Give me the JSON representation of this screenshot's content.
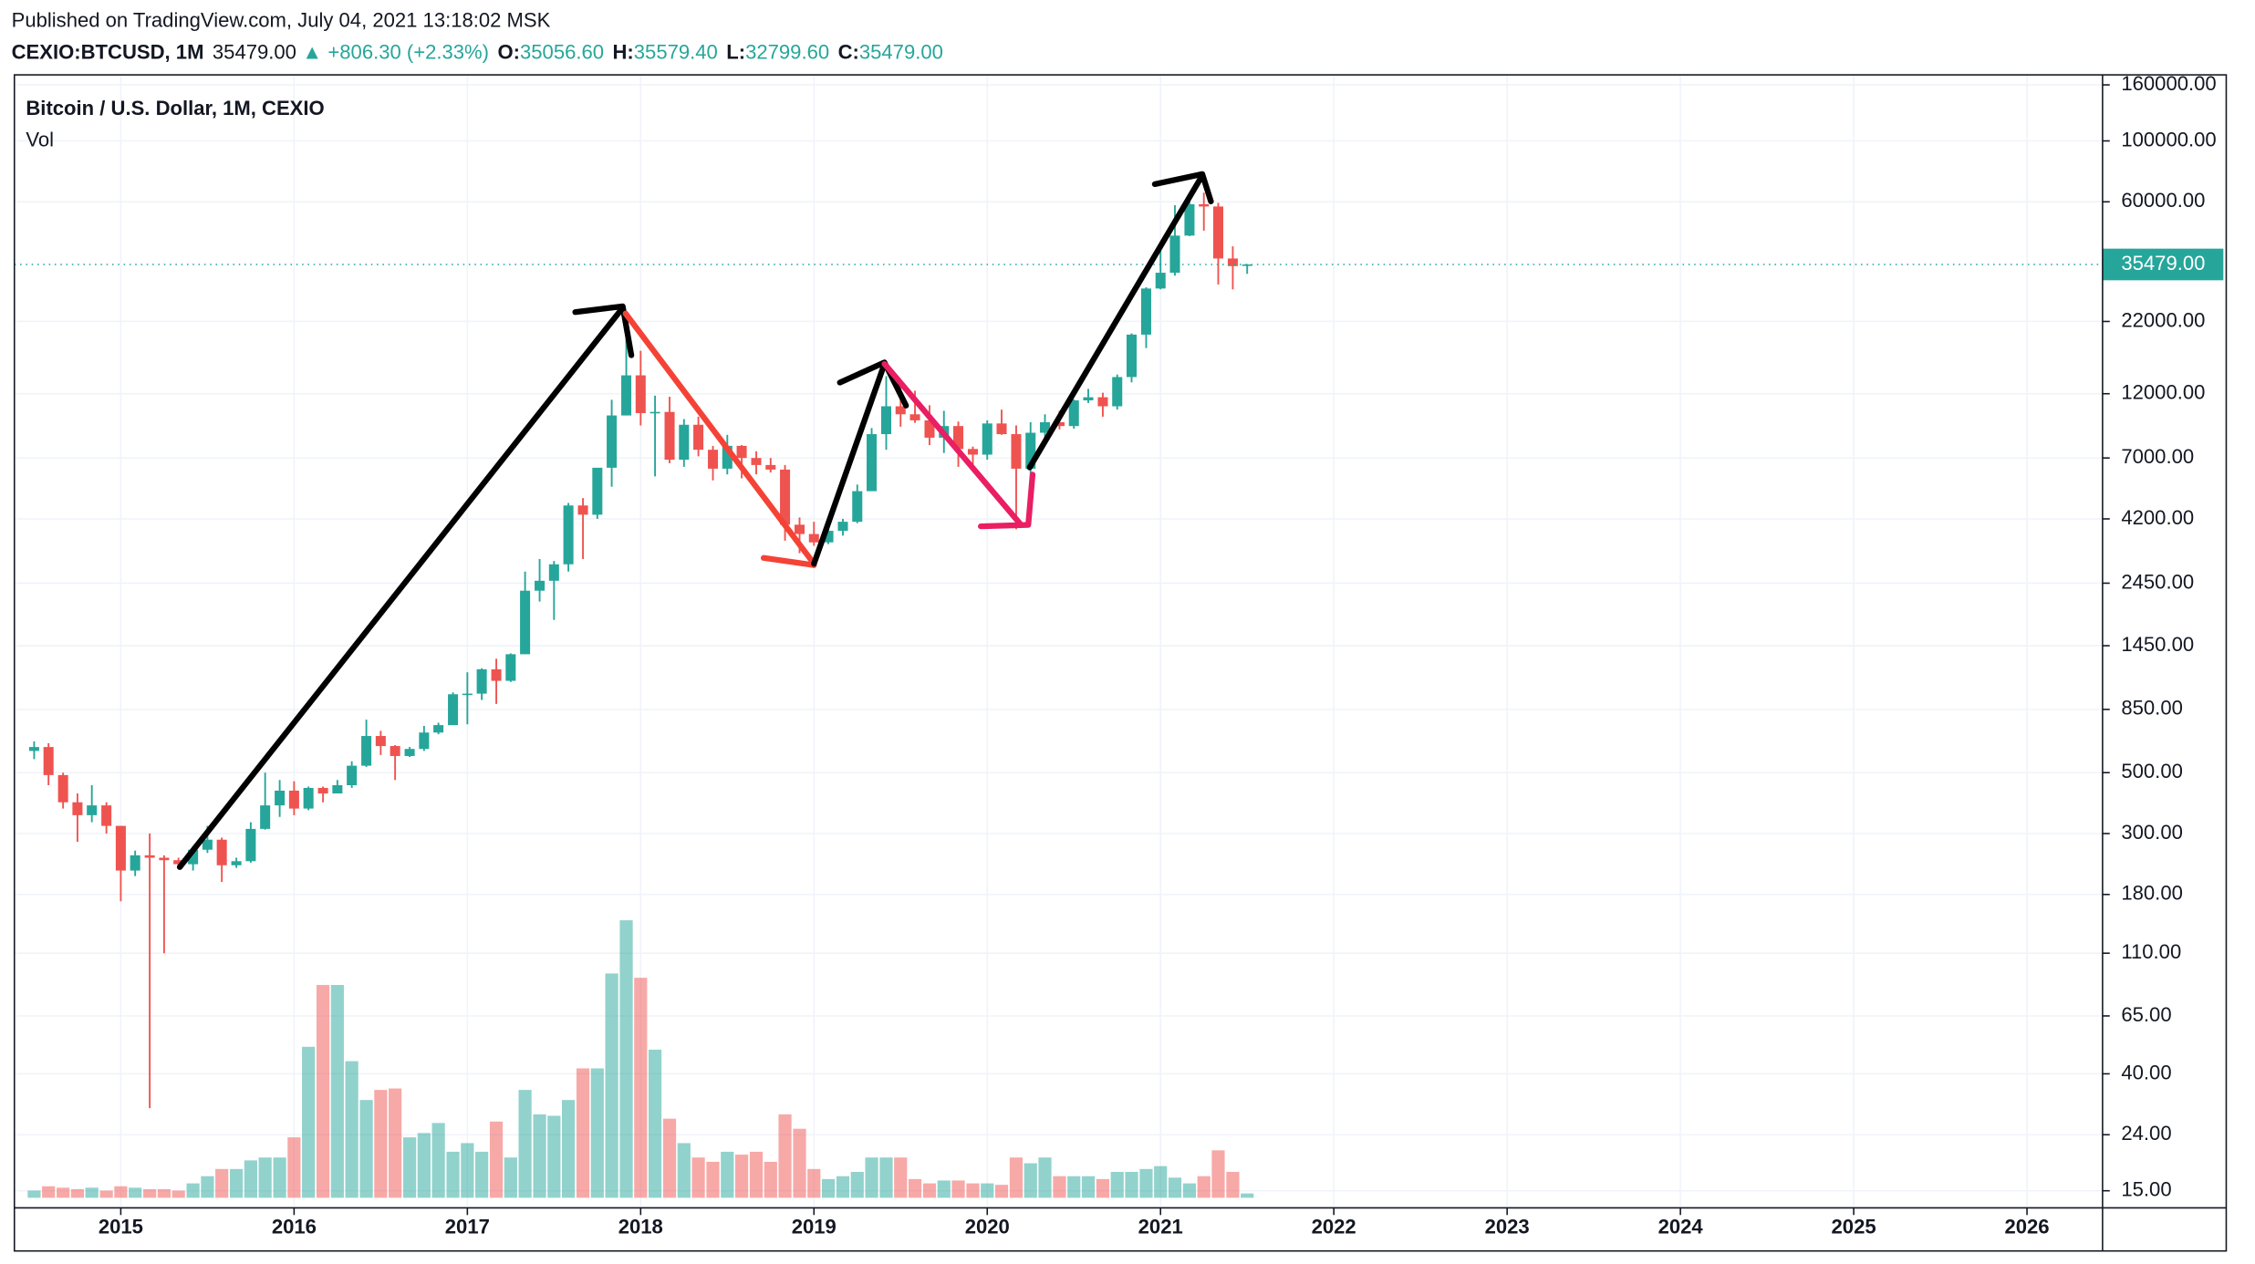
{
  "header": {
    "published": "Published on TradingView.com, July 04, 2021 13:18:02 MSK",
    "symbol": "CEXIO:BTCUSD, 1M",
    "last": "35479.00",
    "arrow": "▲",
    "change": "+806.30 (+2.33%)",
    "ohlc": [
      {
        "key": "O:",
        "value": "35056.60"
      },
      {
        "key": "H:",
        "value": "35579.40"
      },
      {
        "key": "L:",
        "value": "32799.60"
      },
      {
        "key": "C:",
        "value": "35479.00"
      }
    ]
  },
  "chart_data": {
    "type": "candlestick",
    "title": "Bitcoin / U.S. Dollar, 1M, CEXIO",
    "volume_label": "Vol",
    "log_scale": true,
    "grid": true,
    "up_color": "#26a69a",
    "down_color": "#ef5350",
    "ylim": [
      13,
      174000
    ],
    "yticks": [
      {
        "value": 160000,
        "label": "160000.00"
      },
      {
        "value": 100000,
        "label": "100000.00"
      },
      {
        "value": 60000,
        "label": "60000.00"
      },
      {
        "value": 22000,
        "label": "22000.00"
      },
      {
        "value": 12000,
        "label": "12000.00"
      },
      {
        "value": 7000,
        "label": "7000.00"
      },
      {
        "value": 4200,
        "label": "4200.00"
      },
      {
        "value": 2450,
        "label": "2450.00"
      },
      {
        "value": 1450,
        "label": "1450.00"
      },
      {
        "value": 850,
        "label": "850.00"
      },
      {
        "value": 500,
        "label": "500.00"
      },
      {
        "value": 300,
        "label": "300.00"
      },
      {
        "value": 180,
        "label": "180.00"
      },
      {
        "value": 110,
        "label": "110.00"
      },
      {
        "value": 65,
        "label": "65.00"
      },
      {
        "value": 40,
        "label": "40.00"
      },
      {
        "value": 24,
        "label": "24.00"
      },
      {
        "value": 15,
        "label": "15.00"
      }
    ],
    "xlim": [
      2014.386,
      2026.436
    ],
    "xticks": [
      2015,
      2016,
      2017,
      2018,
      2019,
      2020,
      2021,
      2022,
      2023,
      2024,
      2025,
      2026
    ],
    "volume_lim": [
      0,
      200
    ],
    "x": [
      2014.5,
      2014.583,
      2014.667,
      2014.75,
      2014.833,
      2014.917,
      2015.0,
      2015.083,
      2015.167,
      2015.25,
      2015.333,
      2015.417,
      2015.5,
      2015.583,
      2015.667,
      2015.75,
      2015.833,
      2015.917,
      2016.0,
      2016.083,
      2016.167,
      2016.25,
      2016.333,
      2016.417,
      2016.5,
      2016.583,
      2016.667,
      2016.75,
      2016.833,
      2016.917,
      2017.0,
      2017.083,
      2017.167,
      2017.25,
      2017.333,
      2017.417,
      2017.5,
      2017.583,
      2017.667,
      2017.75,
      2017.833,
      2017.917,
      2018.0,
      2018.083,
      2018.167,
      2018.25,
      2018.333,
      2018.417,
      2018.5,
      2018.583,
      2018.667,
      2018.75,
      2018.833,
      2018.917,
      2019.0,
      2019.083,
      2019.167,
      2019.25,
      2019.333,
      2019.417,
      2019.5,
      2019.583,
      2019.667,
      2019.75,
      2019.833,
      2019.917,
      2020.0,
      2020.083,
      2020.167,
      2020.25,
      2020.333,
      2020.417,
      2020.5,
      2020.583,
      2020.667,
      2020.75,
      2020.833,
      2020.917,
      2021.0,
      2021.083,
      2021.167,
      2021.25,
      2021.333,
      2021.417,
      2021.5
    ],
    "open": [
      600,
      620,
      490,
      390,
      350,
      380,
      320,
      220,
      250,
      245,
      240,
      232,
      262,
      285,
      230,
      238,
      312,
      380,
      430,
      370,
      440,
      420,
      450,
      530,
      680,
      625,
      575,
      610,
      700,
      745,
      965,
      970,
      1190,
      1080,
      1350,
      2300,
      2500,
      2870,
      4700,
      4350,
      6450,
      10000,
      14000,
      10200,
      10300,
      6900,
      9250,
      7500,
      6400,
      7750,
      7000,
      6600,
      6350,
      4000,
      3700,
      3450,
      3800,
      4100,
      5300,
      8550,
      10800,
      10100,
      9600,
      8300,
      9150,
      7550,
      7200,
      9350,
      8550,
      6400,
      8650,
      9450,
      9150,
      11350,
      11650,
      10800,
      13800,
      19700,
      29000,
      33100,
      45200,
      58800,
      57700,
      37300,
      35056.6
    ],
    "high": [
      650,
      640,
      500,
      420,
      450,
      390,
      320,
      260,
      300,
      250,
      245,
      270,
      320,
      290,
      245,
      330,
      500,
      470,
      465,
      445,
      445,
      470,
      550,
      780,
      710,
      630,
      620,
      740,
      760,
      980,
      1160,
      1200,
      1300,
      1360,
      2700,
      3000,
      2950,
      4800,
      5000,
      6400,
      11400,
      19800,
      17200,
      11800,
      11700,
      9700,
      9900,
      7750,
      8500,
      7800,
      7400,
      7000,
      6600,
      4250,
      4100,
      4200,
      4200,
      5600,
      9000,
      13900,
      13200,
      12300,
      10900,
      10400,
      9500,
      7700,
      9600,
      10500,
      9200,
      9450,
      10100,
      10400,
      11450,
      12500,
      12100,
      14100,
      19900,
      29300,
      42000,
      58300,
      61800,
      64800,
      59500,
      41300,
      35579.4
    ],
    "low": [
      560,
      450,
      370,
      280,
      330,
      300,
      170,
      210,
      30,
      110,
      225,
      220,
      255,
      200,
      225,
      235,
      310,
      345,
      350,
      365,
      390,
      420,
      440,
      525,
      580,
      470,
      570,
      600,
      690,
      745,
      750,
      920,
      890,
      1070,
      1350,
      2100,
      1800,
      2700,
      3000,
      4200,
      5500,
      10000,
      9200,
      6000,
      6700,
      6500,
      7100,
      5800,
      6100,
      5900,
      6100,
      6200,
      3500,
      3150,
      3350,
      3400,
      3650,
      4050,
      5300,
      7500,
      9100,
      9400,
      7800,
      7300,
      6500,
      6400,
      6900,
      8500,
      3850,
      6150,
      8100,
      8900,
      8950,
      11100,
      9900,
      10500,
      13200,
      17600,
      28800,
      32300,
      45000,
      47100,
      30000,
      28800,
      32799.6
    ],
    "close": [
      620,
      490,
      390,
      350,
      380,
      320,
      220,
      250,
      245,
      240,
      232,
      262,
      285,
      230,
      238,
      312,
      380,
      430,
      370,
      440,
      420,
      450,
      530,
      680,
      625,
      575,
      610,
      700,
      745,
      965,
      970,
      1190,
      1080,
      1350,
      2300,
      2500,
      2870,
      4700,
      4350,
      6450,
      10000,
      14000,
      10200,
      10300,
      6900,
      9250,
      7500,
      6400,
      7750,
      7000,
      6600,
      6350,
      4000,
      3700,
      3450,
      3800,
      4100,
      5300,
      8550,
      10800,
      10100,
      9600,
      8300,
      9150,
      7550,
      7200,
      9350,
      8550,
      6400,
      8650,
      9450,
      9150,
      11350,
      11650,
      10800,
      13800,
      19700,
      29000,
      33100,
      45200,
      58800,
      57700,
      37300,
      35000,
      35479
    ],
    "volume": [
      5,
      8,
      7,
      6,
      7,
      5,
      8,
      7,
      6,
      6,
      5,
      10,
      15,
      20,
      20,
      26,
      28,
      28,
      42,
      105,
      148,
      148,
      95,
      68,
      75,
      76,
      42,
      45,
      52,
      32,
      38,
      32,
      53,
      28,
      75,
      58,
      57,
      68,
      90,
      90,
      156,
      193,
      153,
      103,
      55,
      38,
      28,
      25,
      32,
      30,
      32,
      25,
      58,
      48,
      20,
      13,
      15,
      18,
      28,
      28,
      28,
      13,
      10,
      12,
      12,
      10,
      10,
      9,
      28,
      24,
      28,
      15,
      15,
      15,
      13,
      18,
      18,
      20,
      22,
      14,
      10,
      15,
      33,
      18,
      3
    ]
  }
}
